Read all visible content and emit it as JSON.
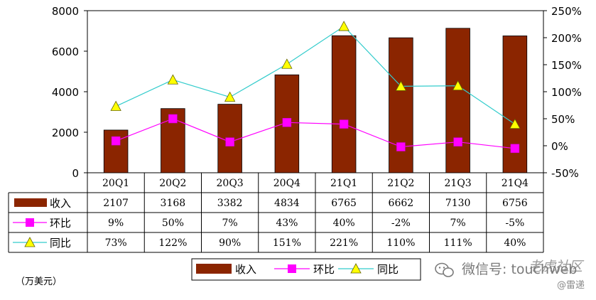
{
  "chart_data": {
    "type": "bar",
    "categories": [
      "20Q1",
      "20Q2",
      "20Q3",
      "20Q4",
      "21Q1",
      "21Q2",
      "21Q3",
      "21Q4"
    ],
    "series": [
      {
        "name": "收入",
        "kind": "bar",
        "axis": "left",
        "color": "#8b2500",
        "values": [
          2107,
          3168,
          3382,
          4834,
          6765,
          6662,
          7130,
          6756
        ]
      },
      {
        "name": "环比",
        "kind": "line",
        "axis": "right",
        "color": "#ff00ff",
        "marker": "square",
        "values": [
          9,
          50,
          7,
          43,
          40,
          -2,
          7,
          -5
        ]
      },
      {
        "name": "同比",
        "kind": "line",
        "axis": "right",
        "color": "#33cccc",
        "marker": "triangle",
        "marker_color": "#ffff00",
        "values": [
          73,
          122,
          90,
          151,
          221,
          110,
          111,
          40
        ]
      }
    ],
    "left_axis": {
      "min": 0,
      "max": 8000,
      "ticks": [
        0,
        2000,
        4000,
        6000,
        8000
      ]
    },
    "right_axis": {
      "min": -50,
      "max": 250,
      "ticks": [
        "-50%",
        "0%",
        "50%",
        "100%",
        "150%",
        "200%",
        "250%"
      ]
    },
    "table": {
      "rows": [
        {
          "label": "收入",
          "cells": [
            "2107",
            "3168",
            "3382",
            "4834",
            "6765",
            "6662",
            "7130",
            "6756"
          ]
        },
        {
          "label": "环比",
          "cells": [
            "9%",
            "50%",
            "7%",
            "43%",
            "40%",
            "-2%",
            "7%",
            "-5%"
          ]
        },
        {
          "label": "同比",
          "cells": [
            "73%",
            "122%",
            "90%",
            "151%",
            "221%",
            "110%",
            "111%",
            "40%"
          ]
        }
      ]
    },
    "legend": [
      "收入",
      "环比",
      "同比"
    ],
    "unit": "（万美元）",
    "grid": false
  },
  "watermark": {
    "wechat": "微信号: touchweb",
    "brand": "老虎社区",
    "source": "@雷递"
  }
}
